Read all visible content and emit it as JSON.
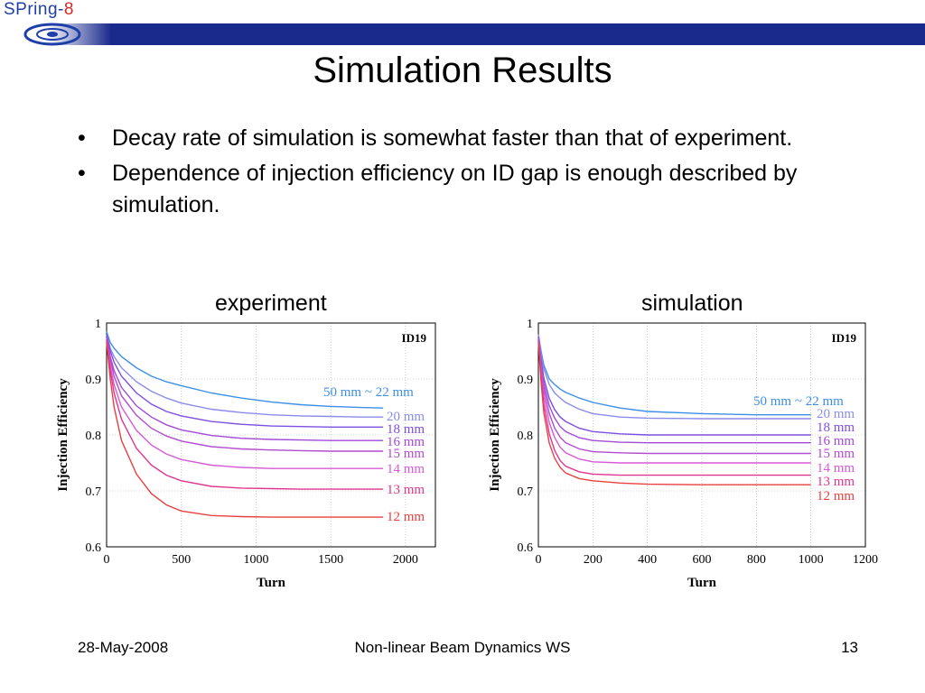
{
  "header": {
    "logo_text": "SPring-",
    "logo_number": "8"
  },
  "slide": {
    "title": "Simulation Results",
    "bullets": [
      "Decay rate of simulation is somewhat faster than that of experiment.",
      "Dependence of injection efficiency on ID gap is enough described by simulation."
    ]
  },
  "footer": {
    "date": "28-May-2008",
    "event": "Non-linear Beam Dynamics WS",
    "page": "13"
  },
  "chart_data": [
    {
      "type": "line",
      "title": "experiment",
      "tag": "ID19",
      "xlabel": "Turn",
      "ylabel": "Injection Efficiency",
      "xlim": [
        0,
        2200
      ],
      "ylim": [
        0.6,
        1.0
      ],
      "xticks": [
        0,
        500,
        1000,
        1500,
        2000
      ],
      "yticks": [
        0.6,
        0.7,
        0.8,
        0.9,
        1
      ],
      "grid": true,
      "series": [
        {
          "name": "50 mm ~ 22 mm",
          "color": "#3d8fe6",
          "x": [
            0,
            25,
            50,
            100,
            200,
            300,
            400,
            500,
            700,
            900,
            1100,
            1300,
            1500,
            1700,
            1850
          ],
          "y": [
            0.985,
            0.965,
            0.955,
            0.94,
            0.92,
            0.905,
            0.895,
            0.888,
            0.875,
            0.866,
            0.859,
            0.854,
            0.851,
            0.849,
            0.848
          ]
        },
        {
          "name": "20 mm",
          "color": "#8a8ce8",
          "x": [
            0,
            25,
            50,
            100,
            200,
            300,
            400,
            500,
            700,
            900,
            1100,
            1300,
            1500,
            1700,
            1850
          ],
          "y": [
            0.98,
            0.955,
            0.94,
            0.92,
            0.895,
            0.878,
            0.866,
            0.857,
            0.846,
            0.84,
            0.836,
            0.834,
            0.833,
            0.832,
            0.832
          ]
        },
        {
          "name": "18 mm",
          "color": "#7b4fe0",
          "x": [
            0,
            25,
            50,
            100,
            200,
            300,
            400,
            500,
            700,
            900,
            1100,
            1300,
            1500,
            1700,
            1850
          ],
          "y": [
            0.98,
            0.95,
            0.93,
            0.905,
            0.875,
            0.855,
            0.842,
            0.834,
            0.824,
            0.819,
            0.816,
            0.815,
            0.814,
            0.814,
            0.814
          ]
        },
        {
          "name": "16 mm",
          "color": "#a24ad8",
          "x": [
            0,
            25,
            50,
            100,
            200,
            300,
            400,
            500,
            700,
            900,
            1100,
            1300,
            1500,
            1700,
            1850
          ],
          "y": [
            0.975,
            0.94,
            0.915,
            0.885,
            0.852,
            0.832,
            0.818,
            0.809,
            0.799,
            0.794,
            0.792,
            0.791,
            0.79,
            0.79,
            0.79
          ]
        },
        {
          "name": "15 mm",
          "color": "#b14cd0",
          "x": [
            0,
            25,
            50,
            100,
            200,
            300,
            400,
            500,
            700,
            900,
            1100,
            1300,
            1500,
            1700,
            1850
          ],
          "y": [
            0.975,
            0.935,
            0.905,
            0.87,
            0.835,
            0.812,
            0.798,
            0.789,
            0.779,
            0.775,
            0.773,
            0.772,
            0.771,
            0.771,
            0.771
          ]
        },
        {
          "name": "14 mm",
          "color": "#d65ad6",
          "x": [
            0,
            25,
            50,
            100,
            200,
            300,
            400,
            500,
            700,
            900,
            1100,
            1300,
            1500,
            1700,
            1850
          ],
          "y": [
            0.97,
            0.925,
            0.89,
            0.85,
            0.808,
            0.782,
            0.766,
            0.756,
            0.746,
            0.742,
            0.74,
            0.74,
            0.74,
            0.74,
            0.74
          ]
        },
        {
          "name": "13 mm",
          "color": "#e0358e",
          "x": [
            0,
            25,
            50,
            100,
            200,
            300,
            400,
            500,
            700,
            900,
            1100,
            1300,
            1500,
            1700,
            1850
          ],
          "y": [
            0.97,
            0.915,
            0.875,
            0.828,
            0.776,
            0.746,
            0.728,
            0.718,
            0.708,
            0.705,
            0.704,
            0.703,
            0.703,
            0.703,
            0.703
          ]
        },
        {
          "name": "12 mm",
          "color": "#e84040",
          "x": [
            0,
            25,
            50,
            100,
            200,
            300,
            400,
            500,
            700,
            900,
            1100,
            1300,
            1500,
            1700,
            1850
          ],
          "y": [
            0.965,
            0.9,
            0.85,
            0.79,
            0.73,
            0.695,
            0.675,
            0.664,
            0.656,
            0.654,
            0.653,
            0.653,
            0.653,
            0.653,
            0.653
          ]
        }
      ]
    },
    {
      "type": "line",
      "title": "simulation",
      "tag": "ID19",
      "xlabel": "Turn",
      "ylabel": "Injection Efficiency",
      "xlim": [
        0,
        1200
      ],
      "ylim": [
        0.6,
        1.0
      ],
      "xticks": [
        0,
        200,
        400,
        600,
        800,
        1000,
        1200
      ],
      "yticks": [
        0.6,
        0.7,
        0.8,
        0.9,
        1
      ],
      "grid": true,
      "series": [
        {
          "name": "50 mm ~ 22 mm",
          "color": "#3d8fe6",
          "x": [
            0,
            10,
            20,
            40,
            60,
            80,
            100,
            150,
            200,
            300,
            400,
            600,
            800,
            1000
          ],
          "y": [
            0.98,
            0.95,
            0.925,
            0.9,
            0.89,
            0.882,
            0.876,
            0.866,
            0.858,
            0.848,
            0.842,
            0.838,
            0.836,
            0.836
          ]
        },
        {
          "name": "20 mm",
          "color": "#8a8ce8",
          "x": [
            0,
            10,
            20,
            40,
            60,
            80,
            100,
            150,
            200,
            300,
            400,
            600,
            800,
            1000
          ],
          "y": [
            0.98,
            0.945,
            0.918,
            0.89,
            0.875,
            0.866,
            0.858,
            0.846,
            0.838,
            0.832,
            0.83,
            0.829,
            0.829,
            0.829
          ]
        },
        {
          "name": "18 mm",
          "color": "#7b4fe0",
          "x": [
            0,
            10,
            20,
            40,
            60,
            80,
            100,
            150,
            200,
            300,
            400,
            600,
            800,
            1000
          ],
          "y": [
            0.975,
            0.935,
            0.902,
            0.865,
            0.845,
            0.832,
            0.824,
            0.812,
            0.806,
            0.802,
            0.8,
            0.8,
            0.8,
            0.8
          ]
        },
        {
          "name": "16 mm",
          "color": "#a24ad8",
          "x": [
            0,
            10,
            20,
            40,
            60,
            80,
            100,
            150,
            200,
            300,
            400,
            600,
            800,
            1000
          ],
          "y": [
            0.975,
            0.93,
            0.892,
            0.852,
            0.83,
            0.815,
            0.806,
            0.795,
            0.79,
            0.787,
            0.786,
            0.786,
            0.786,
            0.786
          ]
        },
        {
          "name": "15 mm",
          "color": "#b14cd0",
          "x": [
            0,
            10,
            20,
            40,
            60,
            80,
            100,
            150,
            200,
            300,
            400,
            600,
            800,
            1000
          ],
          "y": [
            0.975,
            0.925,
            0.882,
            0.838,
            0.812,
            0.796,
            0.786,
            0.775,
            0.77,
            0.768,
            0.767,
            0.767,
            0.767,
            0.767
          ]
        },
        {
          "name": "14 mm",
          "color": "#d65ad6",
          "x": [
            0,
            10,
            20,
            40,
            60,
            80,
            100,
            150,
            200,
            300,
            400,
            600,
            800,
            1000
          ],
          "y": [
            0.97,
            0.915,
            0.87,
            0.822,
            0.795,
            0.778,
            0.768,
            0.757,
            0.752,
            0.75,
            0.75,
            0.75,
            0.75,
            0.75
          ]
        },
        {
          "name": "13 mm",
          "color": "#e0358e",
          "x": [
            0,
            10,
            20,
            40,
            60,
            80,
            100,
            150,
            200,
            300,
            400,
            600,
            800,
            1000
          ],
          "y": [
            0.97,
            0.905,
            0.855,
            0.802,
            0.772,
            0.754,
            0.744,
            0.734,
            0.73,
            0.728,
            0.728,
            0.728,
            0.728,
            0.728
          ]
        },
        {
          "name": "12 mm",
          "color": "#e84040",
          "x": [
            0,
            10,
            20,
            40,
            60,
            80,
            100,
            150,
            200,
            300,
            400,
            600,
            800,
            1000
          ],
          "y": [
            0.965,
            0.895,
            0.84,
            0.785,
            0.758,
            0.742,
            0.732,
            0.722,
            0.718,
            0.714,
            0.712,
            0.711,
            0.711,
            0.711
          ]
        }
      ]
    }
  ]
}
